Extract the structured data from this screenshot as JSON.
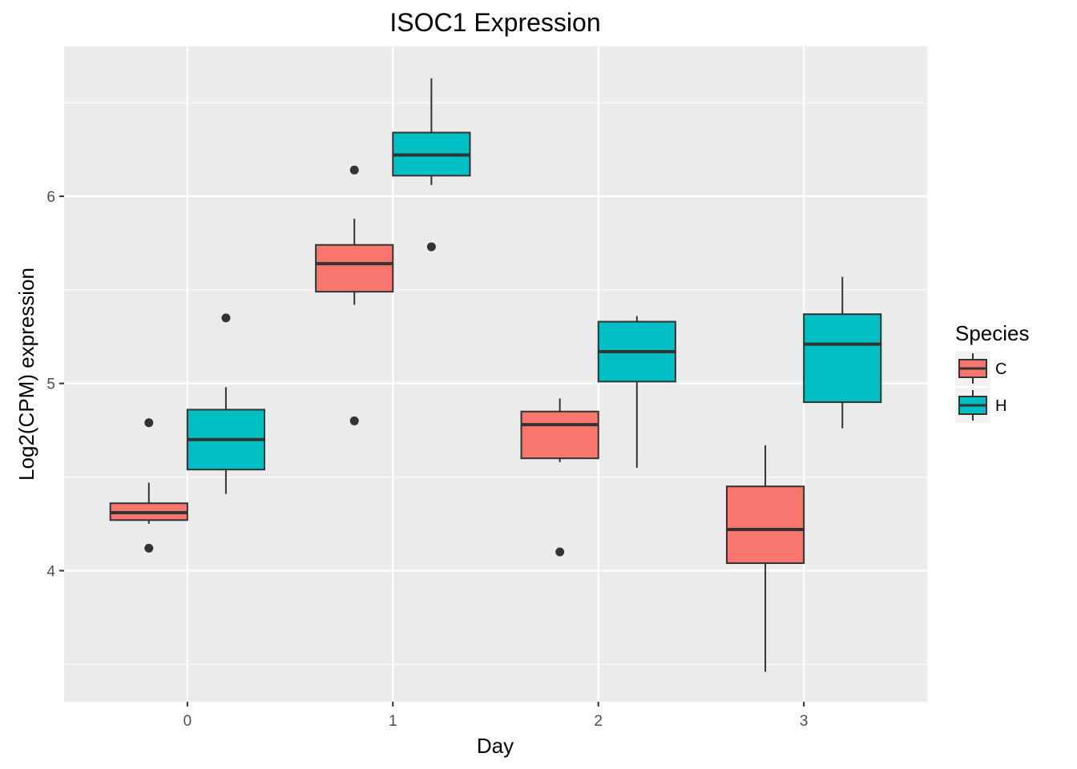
{
  "chart_data": {
    "type": "boxplot",
    "title": "ISOC1 Expression",
    "xlabel": "Day",
    "ylabel": "Log2(CPM) expression",
    "categories": [
      "0",
      "1",
      "2",
      "3"
    ],
    "xlim": [
      -0.6,
      3.6
    ],
    "ylim": [
      3.3,
      6.8
    ],
    "yticks": [
      4,
      5,
      6
    ],
    "grid": true,
    "legend": {
      "title": "Species",
      "position": "right",
      "entries": [
        {
          "label": "C",
          "color": "#F8766D"
        },
        {
          "label": "H",
          "color": "#00BFC4"
        }
      ]
    },
    "series": [
      {
        "name": "C",
        "color": "#F8766D",
        "boxes": [
          {
            "x": "0",
            "min": 4.25,
            "q1": 4.27,
            "median": 4.31,
            "q3": 4.36,
            "max": 4.47,
            "outliers": [
              4.79,
              4.12
            ]
          },
          {
            "x": "1",
            "min": 5.42,
            "q1": 5.49,
            "median": 5.64,
            "q3": 5.74,
            "max": 5.88,
            "outliers": [
              6.14,
              4.8
            ]
          },
          {
            "x": "2",
            "min": 4.58,
            "q1": 4.6,
            "median": 4.78,
            "q3": 4.85,
            "max": 4.92,
            "outliers": [
              4.1
            ]
          },
          {
            "x": "3",
            "min": 3.46,
            "q1": 4.04,
            "median": 4.22,
            "q3": 4.45,
            "max": 4.67,
            "outliers": []
          }
        ]
      },
      {
        "name": "H",
        "color": "#00BFC4",
        "boxes": [
          {
            "x": "0",
            "min": 4.41,
            "q1": 4.54,
            "median": 4.7,
            "q3": 4.86,
            "max": 4.98,
            "outliers": [
              5.35
            ]
          },
          {
            "x": "1",
            "min": 6.06,
            "q1": 6.11,
            "median": 6.22,
            "q3": 6.34,
            "max": 6.63,
            "outliers": [
              5.73
            ]
          },
          {
            "x": "2",
            "min": 4.55,
            "q1": 5.01,
            "median": 5.17,
            "q3": 5.33,
            "max": 5.36,
            "outliers": []
          },
          {
            "x": "3",
            "min": 4.76,
            "q1": 4.9,
            "median": 5.21,
            "q3": 5.37,
            "max": 5.57,
            "outliers": []
          }
        ]
      }
    ]
  }
}
